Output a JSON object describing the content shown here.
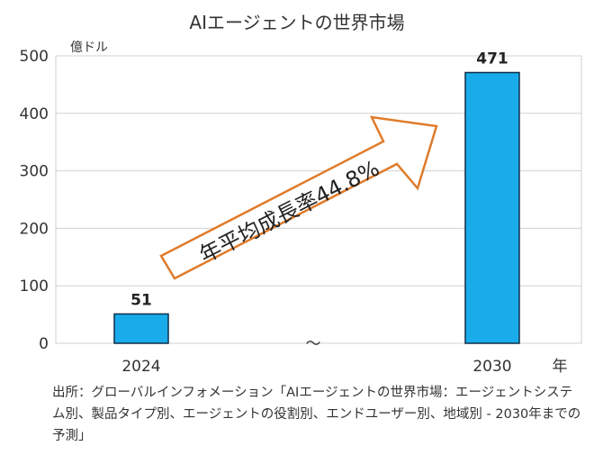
{
  "chart_data": {
    "type": "bar",
    "title": "AIエージェントの世界市場",
    "ylabel": "億ドル",
    "xlabel": "年",
    "ylim": [
      0,
      500
    ],
    "yticks": [
      0,
      100,
      200,
      300,
      400,
      500
    ],
    "categories": [
      "2024",
      "2030"
    ],
    "values": [
      51,
      471
    ],
    "data_labels": [
      "51",
      "471"
    ],
    "axis_break": "〜",
    "annotation": "年平均成長率44.8%",
    "grid": true,
    "colors": {
      "bar": "#1AACEA",
      "bar_edge": "#0E2F4A",
      "arrow_stroke": "#E07B2A",
      "grid": "#d0d0d0"
    }
  },
  "source_text": "出所：グローバルインフォメーション「AIエージェントの世界市場：エージェントシステム別、製品タイプ別、エージェントの役割別、エンドユーザー別、地域別 - 2030年までの予測」"
}
